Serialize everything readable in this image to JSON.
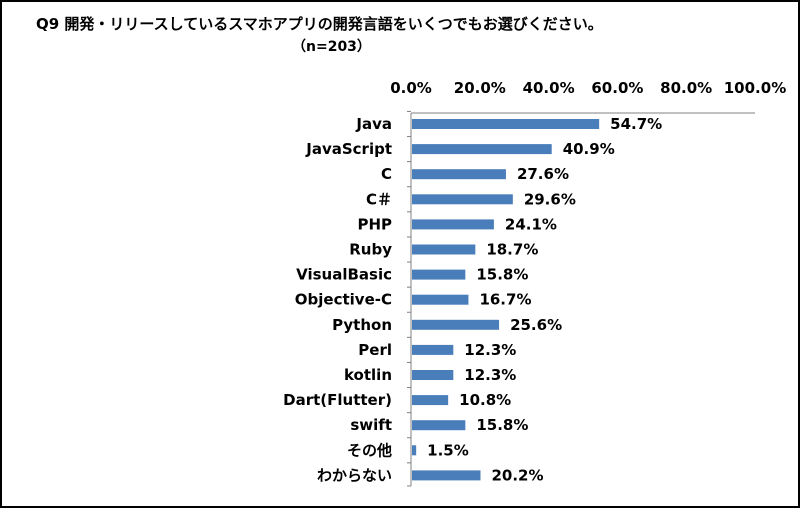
{
  "chart_data": {
    "type": "bar",
    "orientation": "horizontal",
    "title": "Q9 開発・リリースしているスマホアプリの開発言語をいくつでもお選びください。",
    "subtitle": "（n=203）",
    "xlabel": "",
    "ylabel": "",
    "xlim": [
      0,
      100
    ],
    "ticks": [
      "0.0%",
      "20.0%",
      "40.0%",
      "60.0%",
      "80.0%",
      "100.0%"
    ],
    "tick_values": [
      0,
      20,
      40,
      60,
      80,
      100
    ],
    "grid": false,
    "categories": [
      "Java",
      "JavaScript",
      "C",
      "C＃",
      "PHP",
      "Ruby",
      "VisualBasic",
      "Objective-C",
      "Python",
      "Perl",
      "kotlin",
      "Dart(Flutter)",
      "swift",
      "その他",
      "わからない"
    ],
    "values": [
      54.7,
      40.9,
      27.6,
      29.6,
      24.1,
      18.7,
      15.8,
      16.7,
      25.6,
      12.3,
      12.3,
      10.8,
      15.8,
      1.5,
      20.2
    ],
    "value_labels": [
      "54.7%",
      "40.9%",
      "27.6%",
      "29.6%",
      "24.1%",
      "18.7%",
      "15.8%",
      "16.7%",
      "25.6%",
      "12.3%",
      "12.3%",
      "10.8%",
      "15.8%",
      "1.5%",
      "20.2%"
    ],
    "bar_color": "#4a7ebb"
  }
}
